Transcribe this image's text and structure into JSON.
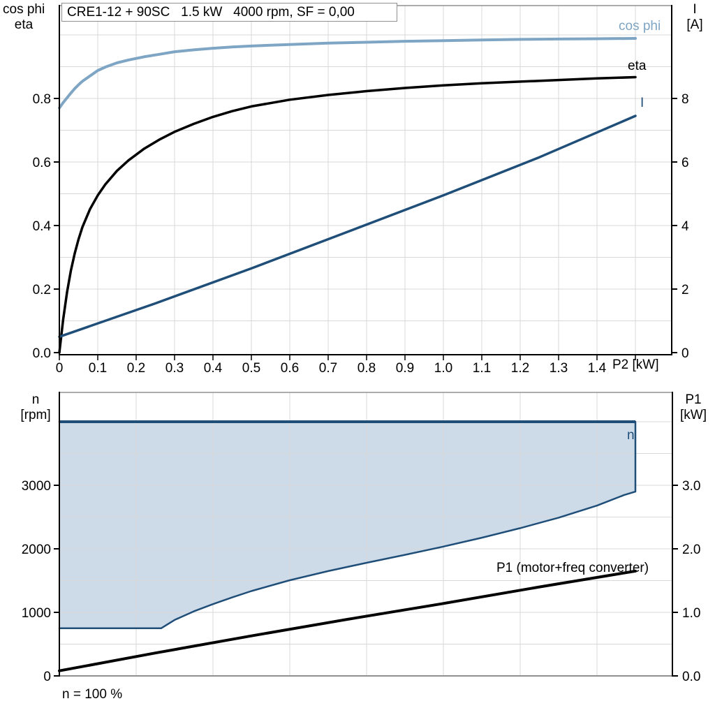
{
  "colors": {
    "dark_blue": "#1F4E79",
    "light_blue": "#7FA5C4",
    "black": "#000000",
    "envelope_fill": "#CDDAE7",
    "gridline": "#D8D8D8",
    "frame_gray": "#909090"
  },
  "chart_data": [
    {
      "id": "top",
      "type": "line",
      "title": "CRE1-12 + 90SC   1.5 kW   4000 rpm, SF = 0,00",
      "x_axis": {
        "label": "P2 [kW]",
        "min": 0,
        "max": 1.6,
        "tick_values": [
          0,
          0.1,
          0.2,
          0.3,
          0.4,
          0.5,
          0.6,
          0.7,
          0.8,
          0.9,
          1.0,
          1.1,
          1.2,
          1.3,
          1.4,
          1.5
        ],
        "tick_labels": [
          "0",
          "0.1",
          "0.2",
          "0.3",
          "0.4",
          "0.5",
          "0.6",
          "0.7",
          "0.8",
          "0.9",
          "1.0",
          "1.1",
          "1.2",
          "1.3",
          "1.4"
        ]
      },
      "y_left": {
        "label_lines": [
          "cos phi",
          "eta"
        ],
        "min": 0,
        "max": 1.09,
        "tick_values": [
          0,
          0.2,
          0.4,
          0.6,
          0.8
        ],
        "tick_labels": [
          "0.0",
          "0.2",
          "0.4",
          "0.6",
          "0.8"
        ]
      },
      "y_right": {
        "label_lines": [
          "I",
          "[A]"
        ],
        "min": 0,
        "max": 10.9,
        "tick_values": [
          0,
          2,
          4,
          6,
          8
        ],
        "tick_labels": [
          "0",
          "2",
          "4",
          "6",
          "8"
        ]
      },
      "grid": {
        "x_step": 0.1,
        "x_max": 1.5,
        "y_step": 0.1,
        "y_max": 1.0
      },
      "series": [
        {
          "name": "cos phi",
          "axis": "left",
          "color_key": "light_blue",
          "points": [
            [
              0,
              0.77
            ],
            [
              0.01,
              0.787
            ],
            [
              0.02,
              0.802
            ],
            [
              0.03,
              0.817
            ],
            [
              0.04,
              0.831
            ],
            [
              0.05,
              0.843
            ],
            [
              0.06,
              0.854
            ],
            [
              0.08,
              0.871
            ],
            [
              0.1,
              0.888
            ],
            [
              0.12,
              0.899
            ],
            [
              0.15,
              0.912
            ],
            [
              0.18,
              0.921
            ],
            [
              0.22,
              0.931
            ],
            [
              0.26,
              0.939
            ],
            [
              0.3,
              0.947
            ],
            [
              0.35,
              0.953
            ],
            [
              0.4,
              0.958
            ],
            [
              0.45,
              0.962
            ],
            [
              0.5,
              0.965
            ],
            [
              0.6,
              0.97
            ],
            [
              0.7,
              0.974
            ],
            [
              0.8,
              0.977
            ],
            [
              0.9,
              0.98
            ],
            [
              1.0,
              0.982
            ],
            [
              1.1,
              0.984
            ],
            [
              1.2,
              0.986
            ],
            [
              1.3,
              0.987
            ],
            [
              1.4,
              0.988
            ],
            [
              1.5,
              0.989
            ]
          ]
        },
        {
          "name": "eta",
          "axis": "left",
          "color_key": "black",
          "points": [
            [
              0,
              0
            ],
            [
              0.01,
              0.105
            ],
            [
              0.02,
              0.19
            ],
            [
              0.03,
              0.258
            ],
            [
              0.04,
              0.312
            ],
            [
              0.05,
              0.357
            ],
            [
              0.06,
              0.395
            ],
            [
              0.08,
              0.452
            ],
            [
              0.1,
              0.495
            ],
            [
              0.12,
              0.53
            ],
            [
              0.15,
              0.572
            ],
            [
              0.18,
              0.605
            ],
            [
              0.22,
              0.641
            ],
            [
              0.26,
              0.67
            ],
            [
              0.3,
              0.695
            ],
            [
              0.35,
              0.72
            ],
            [
              0.4,
              0.742
            ],
            [
              0.45,
              0.76
            ],
            [
              0.5,
              0.775
            ],
            [
              0.6,
              0.796
            ],
            [
              0.7,
              0.811
            ],
            [
              0.8,
              0.823
            ],
            [
              0.9,
              0.833
            ],
            [
              1.0,
              0.841
            ],
            [
              1.1,
              0.848
            ],
            [
              1.2,
              0.853
            ],
            [
              1.3,
              0.858
            ],
            [
              1.4,
              0.863
            ],
            [
              1.5,
              0.867
            ]
          ]
        },
        {
          "name": "I",
          "axis": "right",
          "color_key": "dark_blue",
          "points": [
            [
              0,
              0.5
            ],
            [
              0.25,
              1.55
            ],
            [
              0.5,
              2.65
            ],
            [
              0.75,
              3.8
            ],
            [
              1.0,
              4.95
            ],
            [
              1.25,
              6.15
            ],
            [
              1.5,
              7.45
            ]
          ]
        }
      ]
    },
    {
      "id": "bottom",
      "type": "line",
      "x_axis": {
        "min": 0,
        "max": 1.6
      },
      "y_left": {
        "label_lines": [
          "n",
          "[rpm]"
        ],
        "min": 0,
        "max": 4460,
        "tick_values": [
          0,
          1000,
          2000,
          3000
        ],
        "tick_labels": [
          "0",
          "1000",
          "2000",
          "3000"
        ]
      },
      "y_right": {
        "label_lines": [
          "P1",
          "[kW]"
        ],
        "min": 0,
        "max": 4.46,
        "tick_values": [
          0,
          1,
          2,
          3
        ],
        "tick_labels": [
          "0.0",
          "1.0",
          "2.0",
          "3.0"
        ]
      },
      "grid": {
        "x_step": 0.2,
        "x_max": 1.4,
        "n_step": 500,
        "n_max": 4000
      },
      "series": [
        {
          "name": "n",
          "type": "envelope",
          "axis": "left",
          "color_key": "dark_blue",
          "upper_n": 4000,
          "x_end": 1.5,
          "right_bottom_n": 2900,
          "lower": [
            [
              0,
              750
            ],
            [
              0.265,
              750
            ],
            [
              0.3,
              880
            ],
            [
              0.35,
              1015
            ],
            [
              0.4,
              1130
            ],
            [
              0.45,
              1235
            ],
            [
              0.5,
              1335
            ],
            [
              0.6,
              1505
            ],
            [
              0.7,
              1650
            ],
            [
              0.8,
              1780
            ],
            [
              0.9,
              1905
            ],
            [
              1.0,
              2035
            ],
            [
              1.1,
              2175
            ],
            [
              1.2,
              2325
            ],
            [
              1.3,
              2490
            ],
            [
              1.4,
              2680
            ],
            [
              1.47,
              2845
            ],
            [
              1.5,
              2900
            ]
          ]
        },
        {
          "name": "P1 (motor+freq converter)",
          "axis": "right",
          "color_key": "black",
          "points": [
            [
              0,
              0.08
            ],
            [
              0.25,
              0.36
            ],
            [
              0.5,
              0.63
            ],
            [
              0.75,
              0.89
            ],
            [
              1.0,
              1.14
            ],
            [
              1.25,
              1.4
            ],
            [
              1.5,
              1.65
            ]
          ]
        }
      ],
      "footnote": "n = 100 %"
    }
  ]
}
